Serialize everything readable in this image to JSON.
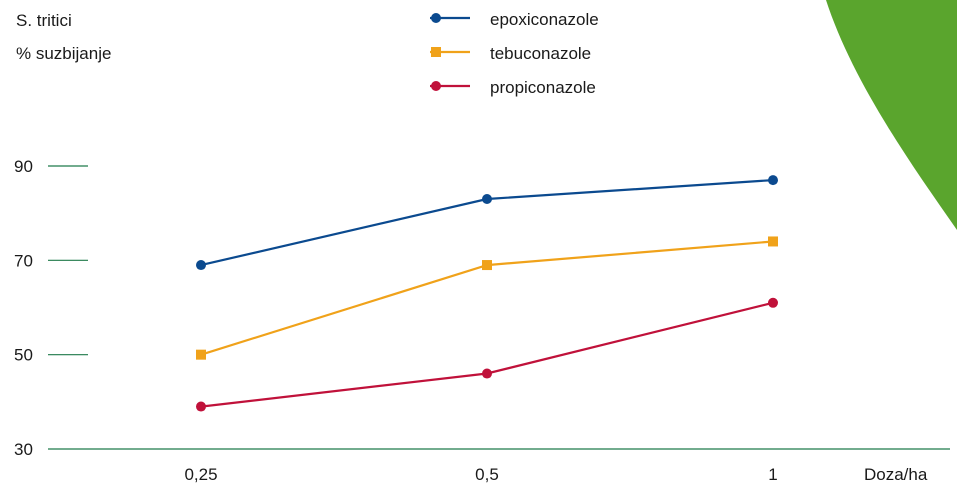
{
  "colors": {
    "axis": "#1f7a4a",
    "decor": "#5aa52d",
    "text": "#1a1a1a"
  },
  "chart_data": {
    "type": "line",
    "ylabel_line1": "S. tritici",
    "ylabel_line2": "% suzbijanje",
    "xlabel": "Doza/ha",
    "categories": [
      "0,25",
      "0,5",
      "1"
    ],
    "y_ticks": [
      90,
      70,
      50,
      30
    ],
    "ylim": [
      30,
      90
    ],
    "legend_position": "top-center",
    "series": [
      {
        "name": "epoxiconazole",
        "values": [
          69,
          83,
          87
        ],
        "color": "#0b4a8f",
        "marker": "circle"
      },
      {
        "name": "tebuconazole",
        "values": [
          50,
          69,
          74
        ],
        "color": "#f0a21a",
        "marker": "square"
      },
      {
        "name": "propiconazole",
        "values": [
          39,
          46,
          61
        ],
        "color": "#c0113a",
        "marker": "circle"
      }
    ]
  }
}
